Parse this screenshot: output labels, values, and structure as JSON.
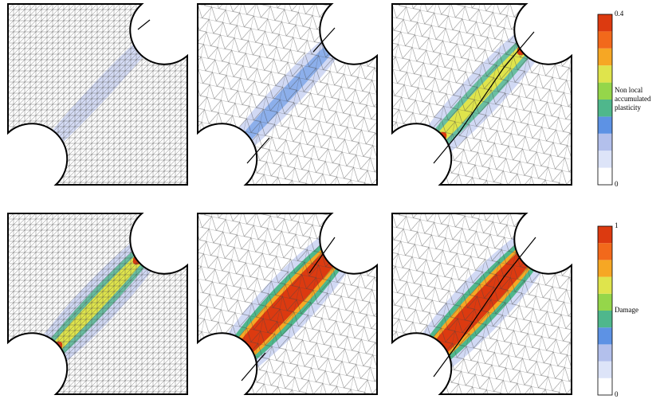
{
  "colorbars": [
    {
      "max": "0.4",
      "min": "0",
      "label": [
        "Non local",
        "accumulated",
        "plasticity"
      ],
      "colors": [
        "#ffffff",
        "#dde4f8",
        "#b3c0ec",
        "#5d92e4",
        "#4fb78c",
        "#95d64a",
        "#dfe44c",
        "#f6a724",
        "#f2691b",
        "#dc3a10"
      ]
    },
    {
      "max": "1",
      "min": "0",
      "label": [
        "Damage"
      ],
      "colors": [
        "#ffffff",
        "#dde4f8",
        "#b3c0ec",
        "#5d92e4",
        "#4fb78c",
        "#95d64a",
        "#dfe44c",
        "#f6a724",
        "#f2691b",
        "#dc3a10"
      ]
    }
  ]
}
